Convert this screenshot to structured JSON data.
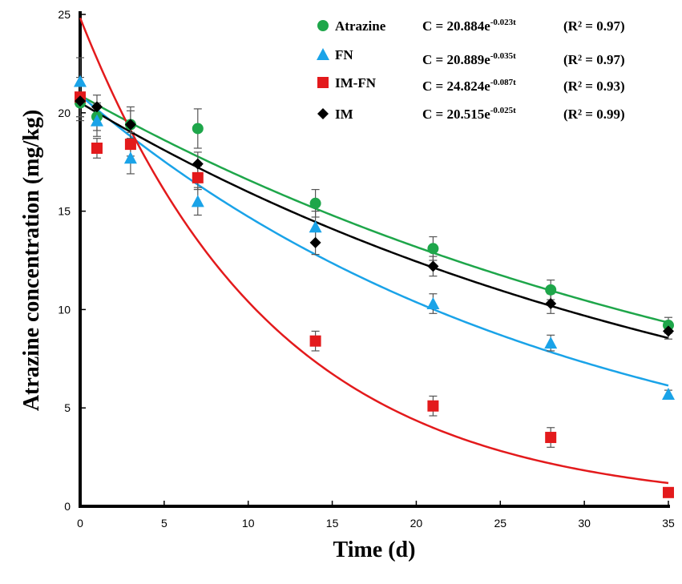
{
  "chart_data": {
    "type": "scatter",
    "title": "",
    "xlabel": "Time (d)",
    "ylabel": "Atrazine concentration (mg/kg)",
    "xlim": [
      0,
      35
    ],
    "ylim": [
      0,
      25
    ],
    "xticks": [
      0,
      5,
      10,
      15,
      20,
      25,
      30,
      35
    ],
    "yticks": [
      0,
      5,
      10,
      15,
      20,
      25
    ],
    "grid": false,
    "legend_position": "top-right",
    "series": [
      {
        "name": "Atrazine",
        "marker": "circle",
        "color": "#1ea64a",
        "x": [
          0,
          1,
          3,
          7,
          14,
          21,
          28,
          35
        ],
        "y": [
          20.5,
          19.8,
          19.4,
          19.2,
          15.4,
          13.1,
          11.0,
          9.2
        ],
        "err": [
          0.9,
          0.7,
          0.9,
          1.0,
          0.7,
          0.6,
          0.5,
          0.4
        ],
        "fit": {
          "a": 20.884,
          "k": 0.023
        },
        "equation": {
          "lhs": "C = 20.884e",
          "exp": "-0.023t",
          "r2": "(R² = 0.97)"
        }
      },
      {
        "name": "FN",
        "marker": "triangle",
        "color": "#1aa3e8",
        "x": [
          0,
          1,
          3,
          7,
          14,
          21,
          28,
          35
        ],
        "y": [
          21.6,
          19.6,
          17.7,
          15.5,
          14.2,
          10.3,
          8.3,
          5.7
        ],
        "err": [
          1.2,
          0.8,
          0.8,
          0.7,
          0.8,
          0.5,
          0.4,
          0.2
        ],
        "fit": {
          "a": 20.889,
          "k": 0.035
        },
        "equation": {
          "lhs": "C = 20.889e",
          "exp": "-0.035t",
          "r2": "(R² = 0.97)"
        }
      },
      {
        "name": "IM-FN",
        "marker": "square",
        "color": "#e31a1c",
        "x": [
          0,
          1,
          3,
          7,
          14,
          21,
          28,
          35
        ],
        "y": [
          20.8,
          18.2,
          18.4,
          16.7,
          8.4,
          5.1,
          3.5,
          0.7
        ],
        "err": [
          1.0,
          0.5,
          0.6,
          0.6,
          0.5,
          0.5,
          0.5,
          0.2
        ],
        "fit": {
          "a": 24.824,
          "k": 0.087
        },
        "equation": {
          "lhs": "C = 24.824e",
          "exp": "-0.087t",
          "r2": "(R² = 0.93)"
        }
      },
      {
        "name": "IM",
        "marker": "diamond",
        "color": "#000000",
        "x": [
          0,
          1,
          3,
          7,
          14,
          21,
          28,
          35
        ],
        "y": [
          20.6,
          20.3,
          19.4,
          17.4,
          13.4,
          12.2,
          10.3,
          8.9
        ],
        "err": [
          0.8,
          0.6,
          0.7,
          0.6,
          0.6,
          0.5,
          0.5,
          0.4
        ],
        "fit": {
          "a": 20.515,
          "k": 0.025
        },
        "equation": {
          "lhs": "C = 20.515e",
          "exp": "-0.025t",
          "r2": "(R² = 0.99)"
        }
      }
    ]
  }
}
